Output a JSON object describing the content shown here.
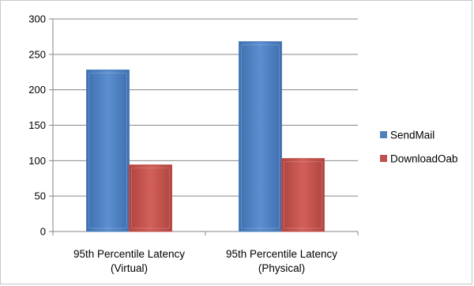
{
  "chart_data": {
    "type": "bar",
    "categories": [
      "95th Percentile Latency (Virtual)",
      "95th Percentile Latency (Physical)"
    ],
    "category_lines": [
      [
        "95th Percentile Latency",
        "(Virtual)"
      ],
      [
        "95th Percentile Latency",
        "(Physical)"
      ]
    ],
    "series": [
      {
        "name": "SendMail",
        "values": [
          228,
          268
        ],
        "color": "#4f81bd"
      },
      {
        "name": "DownloadOab",
        "values": [
          94,
          103
        ],
        "color": "#c0504d"
      }
    ],
    "title": "",
    "xlabel": "",
    "ylabel": "",
    "ylim": [
      0,
      300
    ],
    "yticks": [
      0,
      50,
      100,
      150,
      200,
      250,
      300
    ],
    "grid": true,
    "legend": "right"
  }
}
